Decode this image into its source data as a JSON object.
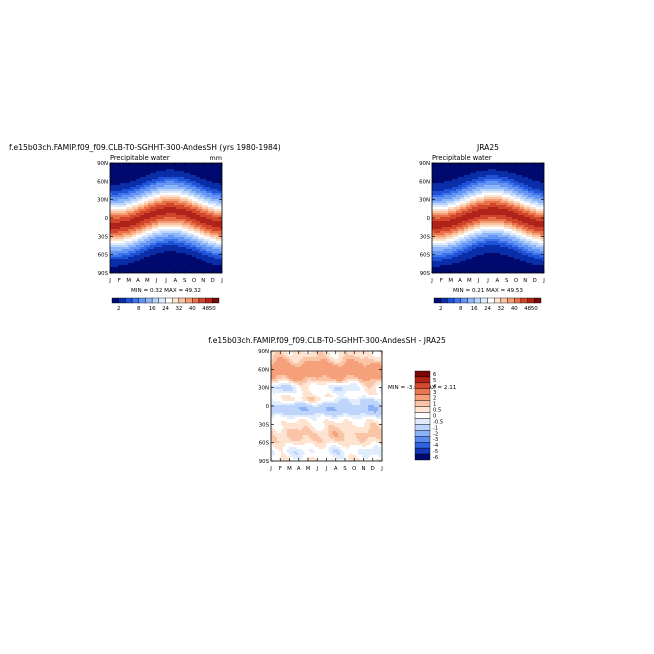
{
  "colors": {
    "abs_palette": [
      "#000a6e",
      "#0a2ea8",
      "#1f52d6",
      "#3f73ea",
      "#6595f4",
      "#8fb6f8",
      "#b9d4fb",
      "#dfeafd",
      "#ffffff",
      "#fde2cd",
      "#fbc4a2",
      "#f59d74",
      "#e8714a",
      "#d1452b",
      "#b0231a",
      "#7a0808"
    ],
    "diff_palette": [
      "#000a6e",
      "#1237b8",
      "#2f61e0",
      "#5b8aef",
      "#8db1f6",
      "#bed4fb",
      "#e1ecfd",
      "#ffffff",
      "#fde3d0",
      "#fac4a6",
      "#f5a07a",
      "#ea7650",
      "#d54a2e",
      "#b22116",
      "#780606"
    ]
  },
  "chart_data": [
    {
      "type": "heatmap",
      "title": "f.e15b03ch.FAMIP.f09_f09.CLB-T0-SGHHT-300-AndesSH (yrs 1980-1984)",
      "subtitle": "Precipitable water",
      "units": "mm",
      "x_ticks": [
        "J",
        "F",
        "M",
        "A",
        "M",
        "J",
        "J",
        "A",
        "S",
        "O",
        "N",
        "D",
        "J"
      ],
      "y_ticks": [
        "90N",
        "60N",
        "30N",
        "0",
        "30S",
        "60S",
        "90S"
      ],
      "y_values": [
        90,
        60,
        30,
        0,
        -30,
        -60,
        -90
      ],
      "stats": "MIN =   0.32  MAX =   49.32",
      "colorbar_ticks": [
        "2",
        "8",
        "16",
        "24",
        "32",
        "40",
        "48",
        "50"
      ],
      "levels": [
        2,
        4,
        6,
        8,
        12,
        16,
        20,
        24,
        28,
        32,
        36,
        40,
        44,
        48,
        50
      ],
      "z_range": [
        0.32,
        49.32
      ]
    },
    {
      "type": "heatmap",
      "title": "JRA25",
      "subtitle": "Precipitable water",
      "units": "",
      "x_ticks": [
        "J",
        "F",
        "M",
        "A",
        "M",
        "J",
        "J",
        "A",
        "S",
        "O",
        "N",
        "D",
        "J"
      ],
      "y_ticks": [
        "90N",
        "60N",
        "30N",
        "0",
        "30S",
        "60S",
        "90S"
      ],
      "y_values": [
        90,
        60,
        30,
        0,
        -30,
        -60,
        -90
      ],
      "stats": "MIN =   0.21  MAX =   49.53",
      "colorbar_ticks": [
        "2",
        "8",
        "16",
        "24",
        "32",
        "40",
        "48",
        "50"
      ],
      "levels": [
        2,
        4,
        6,
        8,
        12,
        16,
        20,
        24,
        28,
        32,
        36,
        40,
        44,
        48,
        50
      ],
      "z_range": [
        0.21,
        49.53
      ]
    },
    {
      "type": "heatmap",
      "title": "f.e15b03ch.FAMIP.f09_f09.CLB-T0-SGHHT-300-AndesSH  -  JRA25",
      "x_ticks": [
        "J",
        "F",
        "M",
        "A",
        "M",
        "J",
        "J",
        "A",
        "S",
        "O",
        "N",
        "D",
        "J"
      ],
      "y_ticks": [
        "90N",
        "60N",
        "30N",
        "0",
        "30S",
        "60S",
        "90S"
      ],
      "y_values": [
        90,
        60,
        30,
        0,
        -30,
        -60,
        -90
      ],
      "stats": "MIN =   -3.04  MAX =    2.11",
      "colorbar_ticks": [
        "6",
        "5",
        "4",
        "3",
        "2",
        "1",
        "0.5",
        "0",
        "-0.5",
        "-1",
        "-2",
        "-3",
        "-4",
        "-5",
        "-6"
      ],
      "levels": [
        -6,
        -5,
        -4,
        -3,
        -2,
        -1,
        -0.5,
        0,
        0.5,
        1,
        2,
        3,
        4,
        5,
        6
      ],
      "z_range": [
        -3.04,
        2.11
      ]
    }
  ]
}
